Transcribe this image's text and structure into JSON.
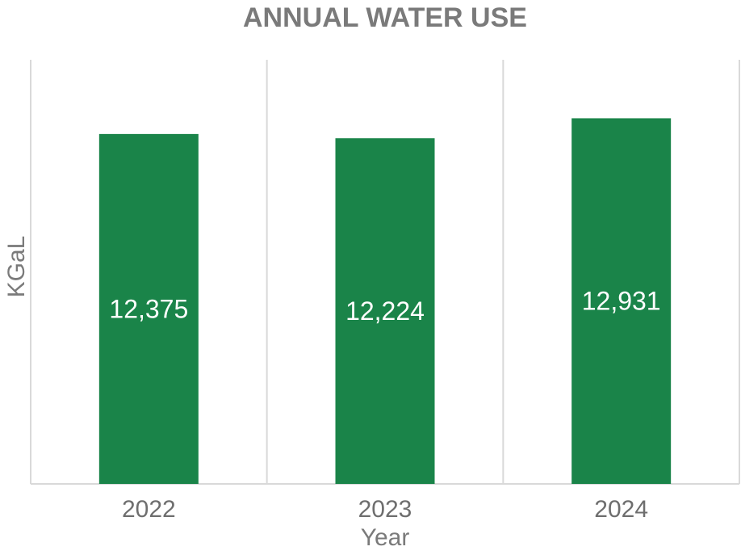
{
  "chart_data": {
    "type": "bar",
    "title": "ANNUAL WATER USE",
    "xlabel": "Year",
    "ylabel": "KGaL",
    "categories": [
      "2022",
      "2023",
      "2024"
    ],
    "values": [
      12375,
      12224,
      12931
    ],
    "data_labels": [
      "12,375",
      "12,224",
      "12,931"
    ],
    "ylim": [
      0,
      15000
    ],
    "grid": "vertical category separators",
    "legend": "none",
    "bar_color": "#1a8449"
  }
}
